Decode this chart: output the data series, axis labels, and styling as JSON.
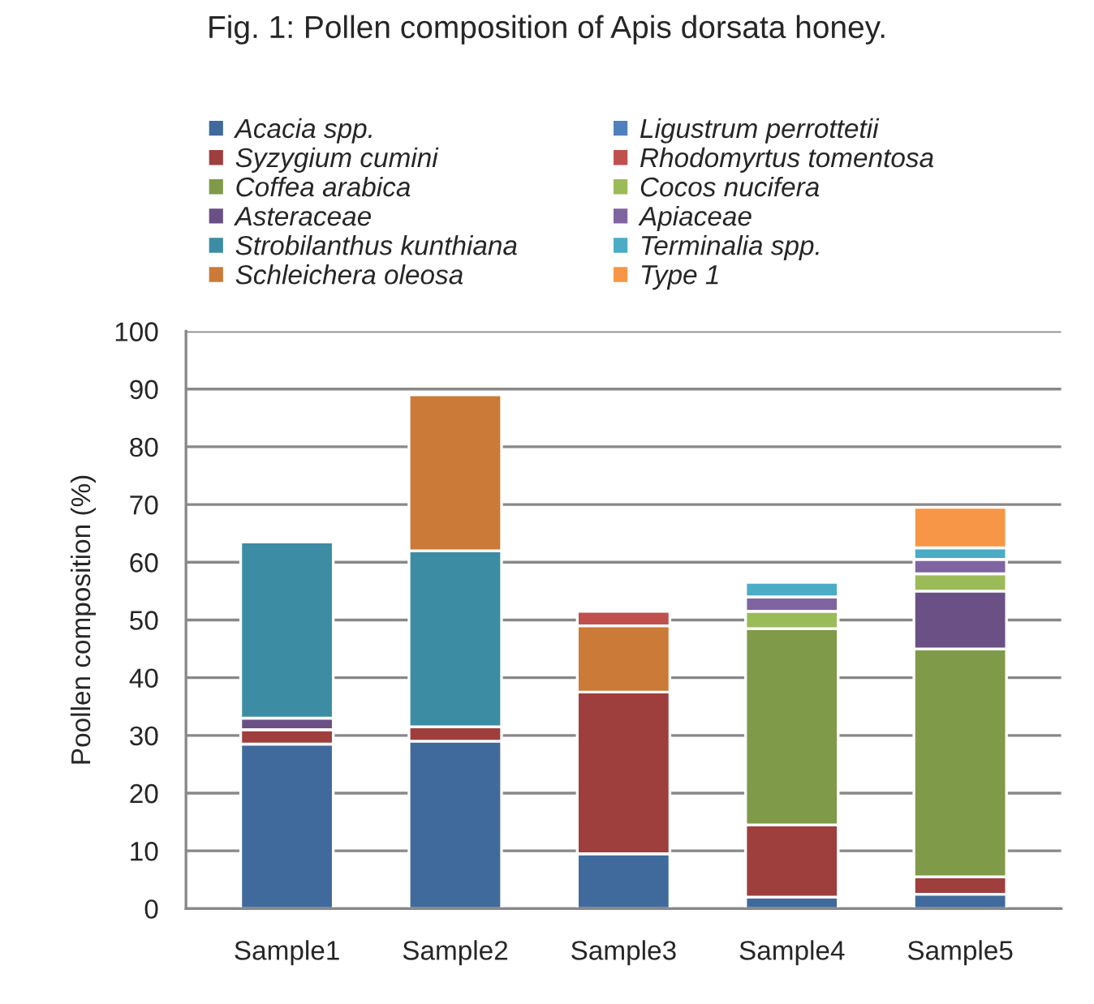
{
  "chart_data": {
    "type": "bar",
    "title": "Fig. 1: Pollen composition of Apis dorsata honey.",
    "ylabel": "Poollen composition (%)",
    "categories": [
      "Sample1",
      "Sample2",
      "Sample3",
      "Sample4",
      "Sample5"
    ],
    "stacked": true,
    "ylim": [
      0,
      100
    ],
    "yticks": [
      0,
      10,
      20,
      30,
      40,
      50,
      60,
      70,
      80,
      90,
      100
    ],
    "grid": "y",
    "legend": "top",
    "series": [
      {
        "name": "Acacia spp.",
        "color": "#406a9c",
        "values": [
          28.5,
          29,
          9.5,
          2,
          2.5
        ]
      },
      {
        "name": "Syzygium cumini",
        "color": "#9e3f3d",
        "values": [
          2.5,
          2.5,
          28,
          12.5,
          3
        ]
      },
      {
        "name": "Coffea arabica",
        "color": "#7f9a48",
        "values": [
          null,
          null,
          null,
          34,
          39.5
        ]
      },
      {
        "name": "Asteraceae",
        "color": "#6a5085",
        "values": [
          2,
          null,
          null,
          null,
          10
        ]
      },
      {
        "name": "Strobilanthus kunthiana",
        "color": "#3c8da3",
        "values": [
          30.5,
          30.5,
          null,
          null,
          null
        ]
      },
      {
        "name": "Schleichera oleosa",
        "color": "#cb7a37",
        "values": [
          null,
          27,
          11.5,
          null,
          null
        ]
      },
      {
        "name": "Ligustrum perrottetii",
        "color": "#4f81bd",
        "values": [
          null,
          null,
          null,
          null,
          null
        ]
      },
      {
        "name": "Rhodomyrtus tomentosa",
        "color": "#c0504d",
        "values": [
          null,
          null,
          2.5,
          null,
          null
        ]
      },
      {
        "name": "Cocos nucifera",
        "color": "#9bbb59",
        "values": [
          null,
          null,
          null,
          3,
          3
        ]
      },
      {
        "name": "Apiaceae",
        "color": "#8064a2",
        "values": [
          null,
          null,
          null,
          2.5,
          2.5
        ]
      },
      {
        "name": "Terminalia spp.",
        "color": "#4bacc6",
        "values": [
          null,
          null,
          null,
          2.5,
          2
        ]
      },
      {
        "name": "Type 1",
        "color": "#f79646",
        "values": [
          null,
          null,
          null,
          null,
          7
        ]
      }
    ]
  }
}
